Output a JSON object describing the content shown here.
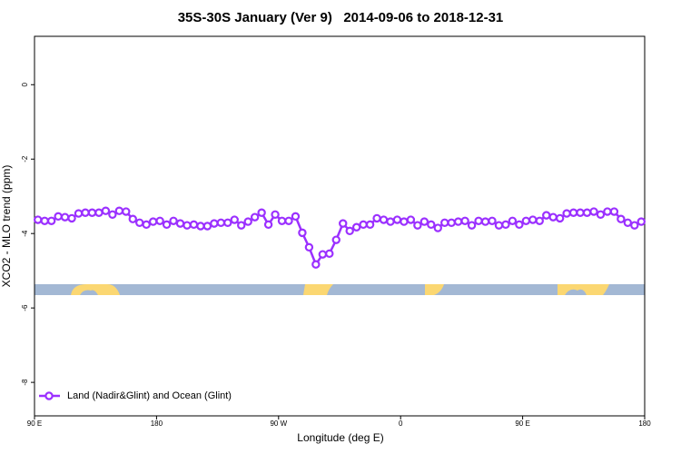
{
  "chart_data": {
    "type": "line",
    "title": "35S-30S January (Ver 9)   2014-09-06 to 2018-12-31",
    "x_label": "Longitude (deg E)",
    "y_label": "XCO2 - MLO trend (ppm)",
    "xlim": [
      90,
      540
    ],
    "xticks": [
      {
        "value": 90,
        "label": "90 E"
      },
      {
        "value": 180,
        "label": "180"
      },
      {
        "value": 270,
        "label": "90 W"
      },
      {
        "value": 360,
        "label": "0"
      },
      {
        "value": 450,
        "label": "90 E"
      },
      {
        "value": 540,
        "label": "180"
      }
    ],
    "ylim": [
      -8.9,
      1.3
    ],
    "yticks": [
      0,
      -2,
      -4,
      -6,
      -8
    ],
    "legend": "bottom-left",
    "x": [
      92.5,
      97.5,
      102.5,
      107.5,
      112.5,
      117.5,
      122.5,
      127.5,
      132.5,
      137.5,
      142.5,
      147.5,
      152.5,
      157.5,
      162.5,
      167.5,
      172.5,
      177.5,
      182.5,
      187.5,
      192.5,
      197.5,
      202.5,
      207.5,
      212.5,
      217.5,
      222.5,
      227.5,
      232.5,
      237.5,
      242.5,
      247.5,
      252.5,
      257.5,
      262.5,
      267.5,
      272.5,
      277.5,
      282.5,
      287.5,
      292.5,
      297.5,
      302.5,
      307.5,
      312.5,
      317.5,
      322.5,
      327.5,
      332.5,
      337.5,
      342.5,
      347.5,
      352.5,
      357.5,
      362.5,
      367.5,
      372.5,
      377.5,
      382.5,
      387.5,
      392.5,
      397.5,
      402.5,
      407.5,
      412.5,
      417.5,
      422.5,
      427.5,
      432.5,
      437.5,
      442.5,
      447.5,
      452.5,
      457.5,
      462.5,
      467.5,
      472.5,
      477.5,
      482.5,
      487.5,
      492.5,
      497.5,
      502.5,
      507.5,
      512.5,
      517.5,
      522.5,
      527.5,
      532.5,
      537.5
    ],
    "series": [
      {
        "name": "Land (Nadir&Glint) and Ocean (Glint)",
        "color": "#9b30ff",
        "values": [
          -3.63,
          -3.66,
          -3.66,
          -3.54,
          -3.56,
          -3.59,
          -3.46,
          -3.44,
          -3.44,
          -3.44,
          -3.39,
          -3.49,
          -3.39,
          -3.41,
          -3.61,
          -3.71,
          -3.76,
          -3.68,
          -3.66,
          -3.76,
          -3.66,
          -3.73,
          -3.78,
          -3.76,
          -3.8,
          -3.8,
          -3.73,
          -3.71,
          -3.71,
          -3.63,
          -3.78,
          -3.68,
          -3.56,
          -3.44,
          -3.76,
          -3.49,
          -3.66,
          -3.66,
          -3.54,
          -3.98,
          -4.37,
          -4.83,
          -4.56,
          -4.54,
          -4.17,
          -3.73,
          -3.93,
          -3.83,
          -3.76,
          -3.76,
          -3.59,
          -3.63,
          -3.68,
          -3.63,
          -3.68,
          -3.63,
          -3.78,
          -3.68,
          -3.76,
          -3.85,
          -3.71,
          -3.71,
          -3.68,
          -3.66,
          -3.78,
          -3.66,
          -3.68,
          -3.66,
          -3.78,
          -3.76,
          -3.66,
          -3.76,
          -3.66,
          -3.63,
          -3.66,
          -3.51,
          -3.56,
          -3.59,
          -3.46,
          -3.44,
          -3.44,
          -3.44,
          -3.41,
          -3.49,
          -3.41,
          -3.41,
          -3.61,
          -3.71,
          -3.78,
          -3.68
        ]
      }
    ]
  }
}
